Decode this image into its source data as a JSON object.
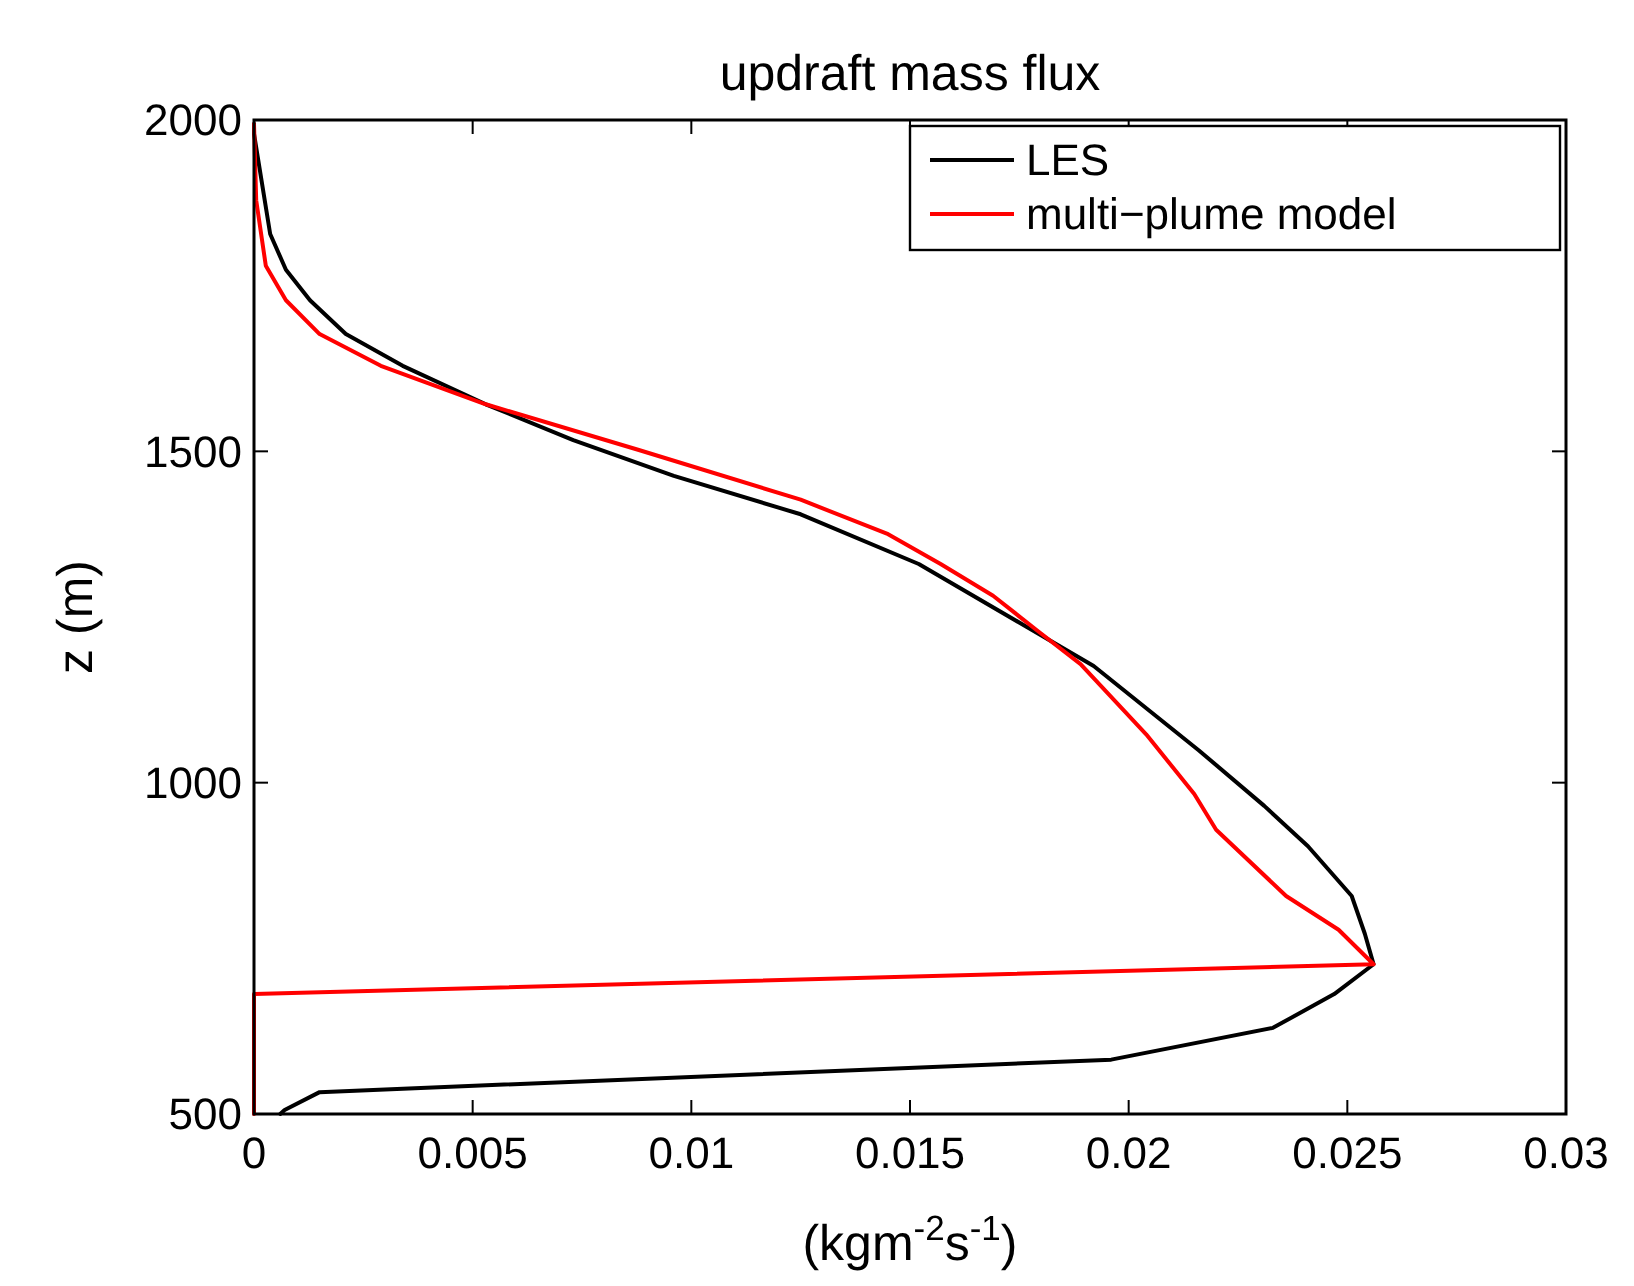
{
  "chart_data": {
    "type": "line",
    "title": "updraft mass flux",
    "xlabel": "(kgm$^{-2}$s$^{-1}$)",
    "ylabel": "z (m)",
    "xlim": [
      0,
      0.03
    ],
    "xticks": [
      0,
      0.005,
      0.01,
      0.015,
      0.02,
      0.025,
      0.03
    ],
    "ylim": [
      500,
      2000
    ],
    "yticks": [
      500,
      1000,
      1500,
      2000
    ],
    "legend": "top right",
    "grid": false,
    "marker": "none",
    "line_style": "solid",
    "series": [
      {
        "name": "LES",
        "color": "#000000",
        "x": [
          0,
          0,
          0.00037,
          0.00073,
          0.00128,
          0.0021,
          0.0034,
          0.0053,
          0.0073,
          0.0096,
          0.0125,
          0.0152,
          0.0178,
          0.0192,
          0.0216,
          0.0231,
          0.0241,
          0.0251,
          0.0254,
          0.0256,
          0.0247,
          0.0233,
          0.0196,
          0.0015,
          0.0007,
          0.0006
        ],
        "values": [
          1994,
          1979,
          1828,
          1774,
          1728,
          1677,
          1629,
          1571,
          1517,
          1463,
          1405,
          1330,
          1230,
          1176,
          1049,
          965,
          904,
          829,
          772,
          726,
          681,
          630,
          582,
          533,
          506,
          500
        ]
      },
      {
        "name": "multi−plume model",
        "color": "#ff0000",
        "x": [
          0,
          5e-05,
          0.00027,
          0.00073,
          0.0015,
          0.0029,
          0.0053,
          0.0088,
          0.0125,
          0.0145,
          0.0157,
          0.0169,
          0.0179,
          0.0189,
          0.0204,
          0.0215,
          0.022,
          0.0236,
          0.0248,
          0.0256,
          0,
          0
        ],
        "values": [
          1994,
          1879,
          1780,
          1728,
          1677,
          1629,
          1571,
          1502,
          1427,
          1375,
          1330,
          1282,
          1230,
          1179,
          1073,
          983,
          929,
          829,
          778,
          726,
          681,
          500
        ]
      }
    ]
  }
}
